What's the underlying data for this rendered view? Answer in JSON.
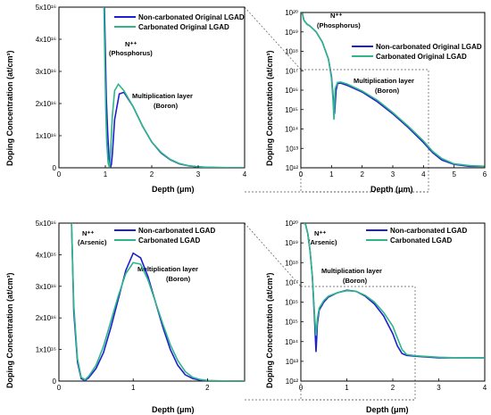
{
  "colors": {
    "non_carbonated": "#1f1fd0",
    "carbonated": "#2fb58a",
    "frame": "#000000",
    "zoom_lines": "#555555"
  },
  "chart_data": [
    {
      "id": "p1",
      "type": "line",
      "xlabel": "Depth (μm)",
      "ylabel": "Doping Concentration (at/cm³)",
      "xlim": [
        0,
        4
      ],
      "ylim": [
        0,
        5e+16
      ],
      "yscale": "linear",
      "xticks": [
        "0",
        "1",
        "2",
        "3",
        "4"
      ],
      "yticks": [
        "0",
        "1x10¹⁶",
        "2x10¹⁶",
        "3x10¹⁶",
        "4x10¹⁶",
        "5x10¹⁶"
      ],
      "legend": [
        "Non-carbonated Original LGAD",
        "Carbonated Original LGAD"
      ],
      "annotations": [
        "N⁺⁺",
        "(Phosphorus)",
        "Multiplication layer",
        "(Boron)"
      ],
      "series": [
        {
          "name": "Non-carbonated Original LGAD",
          "x": [
            0.98,
            1.0,
            1.02,
            1.05,
            1.08,
            1.11,
            1.13,
            1.15,
            1.2,
            1.3,
            1.4,
            1.6,
            1.8,
            2.0,
            2.2,
            2.4,
            2.6,
            2.8,
            3.0,
            3.2,
            3.4,
            3.6,
            3.8,
            4.0
          ],
          "y": [
            5e+16,
            3.6e+16,
            2.2e+16,
            1.1e+16,
            3000000000000000.0,
            100000000000000.0,
            1000000000000000.0,
            4000000000000000.0,
            1.5e+16,
            2.3e+16,
            2.35e+16,
            1.9e+16,
            1.3e+16,
            8000000000000000.0,
            4600000000000000.0,
            2500000000000000.0,
            1200000000000000.0,
            600000000000000.0,
            300000000000000.0,
            150000000000000.0,
            80000000000000.0,
            50000000000000.0,
            30000000000000.0,
            20000000000000.0
          ]
        },
        {
          "name": "Carbonated Original LGAD",
          "x": [
            0.97,
            0.99,
            1.01,
            1.03,
            1.06,
            1.09,
            1.1,
            1.12,
            1.15,
            1.2,
            1.28,
            1.4,
            1.6,
            1.8,
            2.0,
            2.2,
            2.4,
            2.6,
            2.8,
            3.0,
            3.2,
            3.4,
            3.6,
            3.8,
            4.0
          ],
          "y": [
            5e+16,
            3.3e+16,
            1.8e+16,
            8000000000000000.0,
            1500000000000000.0,
            100000000000000.0,
            1500000000000000.0,
            7000000000000000.0,
            1.6e+16,
            2.4e+16,
            2.6e+16,
            2.4e+16,
            1.9e+16,
            1.3e+16,
            8000000000000000.0,
            4800000000000000.0,
            2600000000000000.0,
            1300000000000000.0,
            600000000000000.0,
            300000000000000.0,
            150000000000000.0,
            80000000000000.0,
            50000000000000.0,
            30000000000000.0,
            20000000000000.0
          ]
        }
      ]
    },
    {
      "id": "p2",
      "type": "line",
      "xlabel": "Depth (μm)",
      "ylabel": "Doping Concentration (at/cm³)",
      "xlim": [
        0,
        6
      ],
      "ylim": [
        1000000000000.0,
        1e+20
      ],
      "yscale": "log",
      "xticks": [
        "0",
        "1",
        "2",
        "3",
        "4",
        "5",
        "6"
      ],
      "yticks": [
        "10¹²",
        "10¹³",
        "10¹⁴",
        "10¹⁵",
        "10¹⁶",
        "10¹⁷",
        "10¹⁸",
        "10¹⁹",
        "10²⁰"
      ],
      "legend": [
        "Non-carbonated Original LGAD",
        "Carbonated Original LGAD"
      ],
      "annotations": [
        "N⁺⁺",
        "(Phosphorus)",
        "Multiplication layer",
        "(Boron)"
      ],
      "series": [
        {
          "name": "Non-carbonated Original LGAD",
          "x": [
            0,
            0.05,
            0.1,
            0.2,
            0.3,
            0.5,
            0.7,
            0.9,
            1.0,
            1.05,
            1.1,
            1.15,
            1.2,
            1.3,
            1.5,
            2.0,
            2.5,
            3.0,
            3.5,
            4.0,
            4.3,
            4.6,
            5.0,
            5.5,
            6.0
          ],
          "y": [
            1e+20,
            9e+19,
            4e+19,
            2.5e+19,
            2e+19,
            1e+19,
            3e+18,
            4e+17,
            5e+16,
            5000000000000000.0,
            600000000000000.0,
            1e+16,
            2.2e+16,
            2.3e+16,
            1.8e+16,
            8000000000000000.0,
            2500000000000000.0,
            600000000000000.0,
            120000000000000.0,
            20000000000000.0,
            6000000000000.0,
            2500000000000.0,
            1500000000000.0,
            1200000000000.0,
            1200000000000.0
          ]
        },
        {
          "name": "Carbonated Original LGAD",
          "x": [
            0,
            0.05,
            0.1,
            0.2,
            0.3,
            0.5,
            0.7,
            0.9,
            1.0,
            1.05,
            1.08,
            1.12,
            1.2,
            1.3,
            1.5,
            2.0,
            2.5,
            3.0,
            3.5,
            4.0,
            4.3,
            4.6,
            5.0,
            5.5,
            6.0
          ],
          "y": [
            1e+20,
            9e+19,
            4e+19,
            2.5e+19,
            2e+19,
            1e+19,
            3e+18,
            4e+17,
            4e+16,
            3000000000000000.0,
            300000000000000.0,
            1.2e+16,
            2.5e+16,
            2.6e+16,
            2.1e+16,
            9000000000000000.0,
            3000000000000000.0,
            700000000000000.0,
            140000000000000.0,
            24000000000000.0,
            7000000000000.0,
            3000000000000.0,
            1600000000000.0,
            1300000000000.0,
            1200000000000.0
          ]
        }
      ]
    },
    {
      "id": "p3",
      "type": "line",
      "xlabel": "Depth (μm)",
      "ylabel": "Doping Concentration (at/cm³)",
      "xlim": [
        0,
        2.5
      ],
      "ylim": [
        0,
        5e+16
      ],
      "yscale": "linear",
      "xticks": [
        "0",
        "1",
        "2"
      ],
      "yticks": [
        "0",
        "1x10¹⁶",
        "2x10¹⁶",
        "3x10¹⁶",
        "4x10¹⁶",
        "5x10¹⁶"
      ],
      "legend": [
        "Non-carbonated LGAD",
        "Carbonated LGAD"
      ],
      "annotations": [
        "N⁺⁺",
        "(Arsenic)",
        "Multiplication layer",
        "(Boron)"
      ],
      "series": [
        {
          "name": "Non-carbonated LGAD",
          "x": [
            0.17,
            0.2,
            0.25,
            0.3,
            0.35,
            0.4,
            0.5,
            0.6,
            0.7,
            0.8,
            0.9,
            1.0,
            1.1,
            1.2,
            1.3,
            1.4,
            1.5,
            1.6,
            1.7,
            1.8,
            1.9,
            2.0,
            2.2,
            2.5
          ],
          "y": [
            5e+16,
            2.2e+16,
            6000000000000000.0,
            800000000000000.0,
            200000000000000.0,
            1000000000000000.0,
            4000000000000000.0,
            9000000000000000.0,
            1.7e+16,
            2.6e+16,
            3.5e+16,
            4.05e+16,
            3.9e+16,
            3.3e+16,
            2.5e+16,
            1.7e+16,
            1e+16,
            5000000000000000.0,
            2000000000000000.0,
            800000000000000.0,
            300000000000000.0,
            100000000000000.0,
            50000000000000.0,
            20000000000000.0
          ]
        },
        {
          "name": "Carbonated LGAD",
          "x": [
            0.17,
            0.2,
            0.25,
            0.3,
            0.35,
            0.4,
            0.5,
            0.6,
            0.7,
            0.8,
            0.9,
            1.0,
            1.1,
            1.2,
            1.3,
            1.4,
            1.5,
            1.6,
            1.7,
            1.8,
            1.9,
            2.0,
            2.2,
            2.5
          ],
          "y": [
            5e+16,
            2.4e+16,
            7000000000000000.0,
            1200000000000000.0,
            400000000000000.0,
            1500000000000000.0,
            5000000000000000.0,
            1.1e+16,
            1.9e+16,
            2.7e+16,
            3.4e+16,
            3.75e+16,
            3.7e+16,
            3.2e+16,
            2.5e+16,
            1.8e+16,
            1.15e+16,
            6500000000000000.0,
            3000000000000000.0,
            1200000000000000.0,
            500000000000000.0,
            200000000000000.0,
            70000000000000.0,
            20000000000000.0
          ]
        }
      ]
    },
    {
      "id": "p4",
      "type": "line",
      "xlabel": "Depth (μm)",
      "ylabel": "Doping Concentration (at/cm³)",
      "xlim": [
        0,
        4
      ],
      "ylim": [
        1000000000000.0,
        1e+20
      ],
      "yscale": "log",
      "xticks": [
        "0",
        "1",
        "2",
        "3",
        "4"
      ],
      "yticks": [
        "10¹²",
        "10¹³",
        "10¹⁴",
        "10¹⁵",
        "10¹⁶",
        "10¹⁷",
        "10¹⁸",
        "10¹⁹",
        "10²⁰"
      ],
      "legend": [
        "Non-carbonated LGAD",
        "Carbonated LGAD"
      ],
      "annotations": [
        "N⁺⁺",
        "(Arsenic)",
        "Multiplication layer",
        "(Boron)"
      ],
      "series": [
        {
          "name": "Non-carbonated LGAD",
          "x": [
            0,
            0.05,
            0.1,
            0.15,
            0.2,
            0.25,
            0.3,
            0.33,
            0.36,
            0.4,
            0.5,
            0.6,
            0.8,
            1.0,
            1.2,
            1.4,
            1.6,
            1.8,
            2.0,
            2.1,
            2.2,
            2.3,
            2.5,
            3.0,
            3.5,
            4.0
          ],
          "y": [
            1e+20,
            1e+20,
            9e+19,
            3e+19,
            4e+18,
            2e+17,
            1000000000000000.0,
            30000000000000.0,
            800000000000000.0,
            4000000000000000.0,
            1e+16,
            1.8e+16,
            3e+16,
            4e+16,
            3.5e+16,
            2e+16,
            8000000000000000.0,
            2000000000000000.0,
            250000000000000.0,
            60000000000000.0,
            25000000000000.0,
            20000000000000.0,
            18000000000000.0,
            15000000000000.0,
            15000000000000.0,
            15000000000000.0
          ]
        },
        {
          "name": "Carbonated LGAD",
          "x": [
            0,
            0.05,
            0.1,
            0.15,
            0.2,
            0.25,
            0.3,
            0.33,
            0.36,
            0.4,
            0.5,
            0.6,
            0.8,
            1.0,
            1.2,
            1.4,
            1.6,
            1.8,
            2.0,
            2.1,
            2.2,
            2.3,
            2.5,
            3.0,
            3.5,
            4.0
          ],
          "y": [
            1e+20,
            1e+20,
            9e+19,
            3e+19,
            4e+18,
            2e+17,
            2000000000000000.0,
            200000000000000.0,
            1500000000000000.0,
            5000000000000000.0,
            1.2e+16,
            2e+16,
            3e+16,
            3.8e+16,
            3.5e+16,
            2.2e+16,
            1e+16,
            3000000000000000.0,
            600000000000000.0,
            150000000000000.0,
            40000000000000.0,
            22000000000000.0,
            19000000000000.0,
            16000000000000.0,
            15000000000000.0,
            15000000000000.0
          ]
        }
      ]
    }
  ]
}
